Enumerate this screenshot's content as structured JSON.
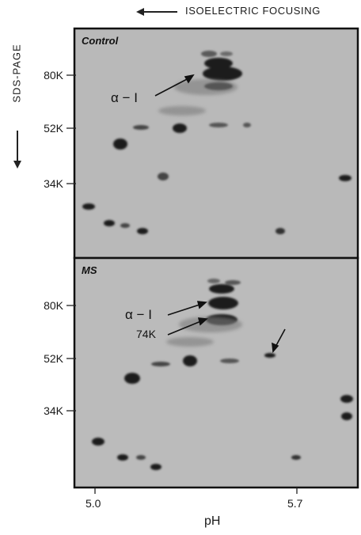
{
  "header": {
    "isoelectric_label": "ISOELECTRIC FOCUSING"
  },
  "y_axis": {
    "label": "SDS-PAGE"
  },
  "panels": [
    {
      "label": "Control",
      "mw_markers": [
        "80K",
        "52K",
        "34K"
      ],
      "annotations": [
        "α − I"
      ]
    },
    {
      "label": "MS",
      "mw_markers": [
        "80K",
        "52K",
        "34K"
      ],
      "annotations": [
        "α − I",
        "74K"
      ]
    }
  ],
  "x_axis": {
    "ticks": [
      "5.0",
      "5.7"
    ],
    "label": "pH"
  }
}
